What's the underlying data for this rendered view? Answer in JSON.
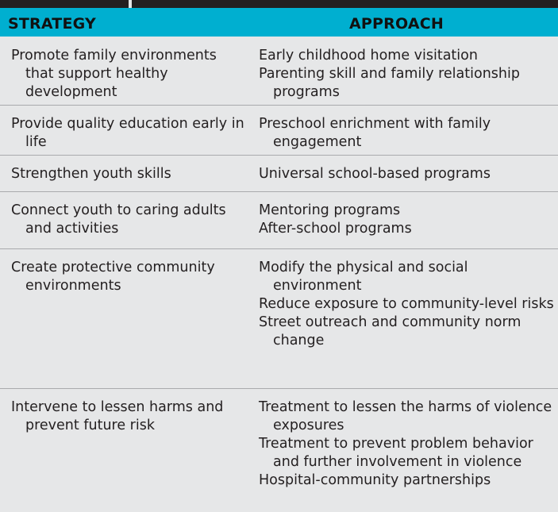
{
  "headers": {
    "strategy": "STRATEGY",
    "approach": "APPROACH"
  },
  "rows": [
    {
      "strategy": "Promote family environments that support healthy development",
      "approaches": [
        "Early childhood home visitation",
        "Parenting skill and family relationship programs"
      ]
    },
    {
      "strategy": "Provide quality education early in life",
      "approaches": [
        "Preschool enrichment with family engagement"
      ]
    },
    {
      "strategy": "Strengthen youth skills",
      "approaches": [
        "Universal school-based programs"
      ]
    },
    {
      "strategy": "Connect youth to caring adults and activities",
      "approaches": [
        "Mentoring programs",
        "After-school programs"
      ]
    },
    {
      "strategy": "Create protective community environments",
      "approaches": [
        "Modify the physical and social environment",
        "Reduce exposure to community-level risks",
        "Street outreach and community norm change"
      ]
    },
    {
      "strategy": "Intervene to lessen harms and prevent future risk",
      "approaches": [
        "Treatment to lessen the harms of violence exposures",
        "Treatment to prevent problem behavior and further involvement in violence",
        "Hospital-community partnerships"
      ]
    }
  ]
}
